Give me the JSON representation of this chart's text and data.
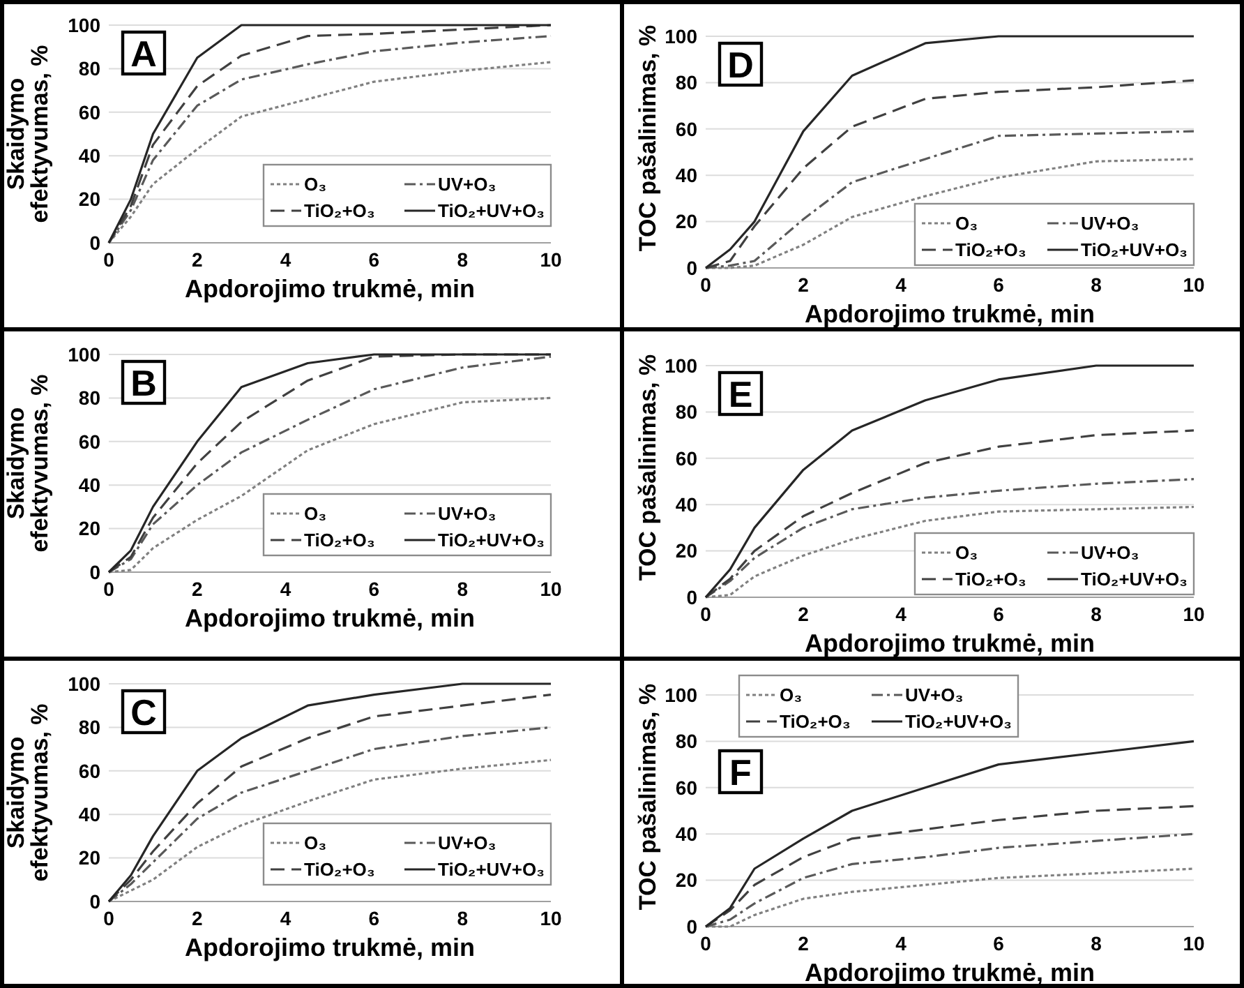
{
  "chart_data": [
    {
      "type": "line",
      "title": "A",
      "xlabel": "Apdorojimo trukmė, min",
      "ylabel": "Skaidymo efektyvumas, %",
      "x": [
        0,
        0.5,
        1,
        2,
        3,
        4.5,
        6,
        8,
        10
      ],
      "xlim": [
        0,
        10
      ],
      "xticks": [
        0,
        2,
        4,
        6,
        8,
        10
      ],
      "ylim": [
        0,
        100
      ],
      "yticks": [
        0,
        20,
        40,
        60,
        80,
        100
      ],
      "grid": "y",
      "legend": "bottom right",
      "series": [
        {
          "name": "O₃",
          "color": "#808080",
          "line_style": "dotted",
          "values": [
            0,
            12,
            27,
            43,
            58,
            66,
            74,
            79,
            83
          ]
        },
        {
          "name": "UV+O₃",
          "color": "#595959",
          "line_style": "dashdot",
          "values": [
            0,
            15,
            38,
            63,
            75,
            82,
            88,
            92,
            95
          ]
        },
        {
          "name": "TiO₂+O₃",
          "color": "#404040",
          "line_style": "dashed",
          "values": [
            0,
            17,
            45,
            72,
            86,
            95,
            96,
            98,
            100
          ]
        },
        {
          "name": "TiO₂+UV+O₃",
          "color": "#262626",
          "line_style": "solid",
          "values": [
            0,
            20,
            50,
            85,
            100,
            100,
            100,
            100,
            100
          ]
        }
      ]
    },
    {
      "type": "line",
      "title": "D",
      "xlabel": "Apdorojimo trukmė, min",
      "ylabel": "TOC pašalinimas, %",
      "x": [
        0,
        0.5,
        1,
        2,
        3,
        4.5,
        6,
        8,
        10
      ],
      "xlim": [
        0,
        10
      ],
      "xticks": [
        0,
        2,
        4,
        6,
        8,
        10
      ],
      "ylim": [
        0,
        100
      ],
      "yticks": [
        0,
        20,
        40,
        60,
        80,
        100
      ],
      "grid": "y",
      "legend": "bottom right",
      "series": [
        {
          "name": "O₃",
          "color": "#808080",
          "line_style": "dotted",
          "values": [
            0,
            0,
            1,
            10,
            22,
            31,
            39,
            46,
            47
          ]
        },
        {
          "name": "UV+O₃",
          "color": "#595959",
          "line_style": "dashdot",
          "values": [
            0,
            1,
            3,
            21,
            37,
            47,
            57,
            58,
            59
          ]
        },
        {
          "name": "TiO₂+O₃",
          "color": "#404040",
          "line_style": "dashed",
          "values": [
            0,
            3,
            18,
            43,
            61,
            73,
            76,
            78,
            81
          ]
        },
        {
          "name": "TiO₂+UV+O₃",
          "color": "#262626",
          "line_style": "solid",
          "values": [
            0,
            8,
            20,
            59,
            83,
            97,
            100,
            100,
            100
          ]
        }
      ]
    },
    {
      "type": "line",
      "title": "B",
      "xlabel": "Apdorojimo trukmė, min",
      "ylabel": "Skaidymo efektyvumas, %",
      "x": [
        0,
        0.5,
        1,
        2,
        3,
        4.5,
        6,
        8,
        10
      ],
      "xlim": [
        0,
        10
      ],
      "xticks": [
        0,
        2,
        4,
        6,
        8,
        10
      ],
      "ylim": [
        0,
        100
      ],
      "yticks": [
        0,
        20,
        40,
        60,
        80,
        100
      ],
      "grid": "y",
      "legend": "bottom right",
      "series": [
        {
          "name": "O₃",
          "color": "#808080",
          "line_style": "dotted",
          "values": [
            0,
            1,
            11,
            24,
            35,
            56,
            68,
            78,
            80
          ]
        },
        {
          "name": "UV+O₃",
          "color": "#595959",
          "line_style": "dashdot",
          "values": [
            0,
            6,
            22,
            40,
            55,
            70,
            84,
            94,
            99
          ]
        },
        {
          "name": "TiO₂+O₃",
          "color": "#404040",
          "line_style": "dashed",
          "values": [
            0,
            7,
            25,
            50,
            69,
            88,
            99,
            100,
            100
          ]
        },
        {
          "name": "TiO₂+UV+O₃",
          "color": "#262626",
          "line_style": "solid",
          "values": [
            0,
            10,
            30,
            60,
            85,
            96,
            100,
            100,
            100
          ]
        }
      ]
    },
    {
      "type": "line",
      "title": "E",
      "xlabel": "Apdorojimo trukmė, min",
      "ylabel": "TOC pašalinimas, %",
      "x": [
        0,
        0.5,
        1,
        2,
        3,
        4.5,
        6,
        8,
        10
      ],
      "xlim": [
        0,
        10
      ],
      "xticks": [
        0,
        2,
        4,
        6,
        8,
        10
      ],
      "ylim": [
        0,
        100
      ],
      "yticks": [
        0,
        20,
        40,
        60,
        80,
        100
      ],
      "grid": "y",
      "legend": "bottom right",
      "series": [
        {
          "name": "O₃",
          "color": "#808080",
          "line_style": "dotted",
          "values": [
            0,
            1,
            9,
            18,
            25,
            33,
            37,
            38,
            39
          ]
        },
        {
          "name": "UV+O₃",
          "color": "#595959",
          "line_style": "dashdot",
          "values": [
            0,
            7,
            17,
            30,
            38,
            43,
            46,
            49,
            51
          ]
        },
        {
          "name": "TiO₂+O₃",
          "color": "#404040",
          "line_style": "dashed",
          "values": [
            0,
            8,
            20,
            35,
            45,
            58,
            65,
            70,
            72
          ]
        },
        {
          "name": "TiO₂+UV+O₃",
          "color": "#262626",
          "line_style": "solid",
          "values": [
            0,
            12,
            30,
            55,
            72,
            85,
            94,
            100,
            100
          ]
        }
      ]
    },
    {
      "type": "line",
      "title": "C",
      "xlabel": "Apdorojimo trukmė, min",
      "ylabel": "Skaidymo efektyvumas, %",
      "x": [
        0,
        0.5,
        1,
        2,
        3,
        4.5,
        6,
        8,
        10
      ],
      "xlim": [
        0,
        10
      ],
      "xticks": [
        0,
        2,
        4,
        6,
        8,
        10
      ],
      "ylim": [
        0,
        100
      ],
      "yticks": [
        0,
        20,
        40,
        60,
        80,
        100
      ],
      "grid": "y",
      "legend": "bottom right",
      "series": [
        {
          "name": "O₃",
          "color": "#808080",
          "line_style": "dotted",
          "values": [
            0,
            5,
            10,
            25,
            35,
            46,
            56,
            61,
            65
          ]
        },
        {
          "name": "UV+O₃",
          "color": "#595959",
          "line_style": "dashdot",
          "values": [
            0,
            8,
            18,
            38,
            50,
            60,
            70,
            76,
            80
          ]
        },
        {
          "name": "TiO₂+O₃",
          "color": "#404040",
          "line_style": "dashed",
          "values": [
            0,
            10,
            23,
            45,
            62,
            75,
            85,
            90,
            95
          ]
        },
        {
          "name": "TiO₂+UV+O₃",
          "color": "#262626",
          "line_style": "solid",
          "values": [
            0,
            12,
            30,
            60,
            75,
            90,
            95,
            100,
            100
          ]
        }
      ]
    },
    {
      "type": "line",
      "title": "F",
      "xlabel": "Apdorojimo trukmė, min",
      "ylabel": "TOC pašalinimas, %",
      "x": [
        0,
        0.5,
        1,
        2,
        3,
        4.5,
        6,
        8,
        10
      ],
      "xlim": [
        0,
        10
      ],
      "xticks": [
        0,
        2,
        4,
        6,
        8,
        10
      ],
      "ylim": [
        0,
        100
      ],
      "yticks": [
        0,
        20,
        40,
        60,
        80,
        100
      ],
      "grid": "y",
      "legend": "top left",
      "series": [
        {
          "name": "O₃",
          "color": "#808080",
          "line_style": "dotted",
          "values": [
            0,
            0,
            5,
            12,
            15,
            18,
            21,
            23,
            25
          ]
        },
        {
          "name": "UV+O₃",
          "color": "#595959",
          "line_style": "dashdot",
          "values": [
            0,
            3,
            10,
            21,
            27,
            30,
            34,
            37,
            40
          ]
        },
        {
          "name": "TiO₂+O₃",
          "color": "#404040",
          "line_style": "dashed",
          "values": [
            0,
            7,
            18,
            30,
            38,
            42,
            46,
            50,
            52
          ]
        },
        {
          "name": "TiO₂+UV+O₃",
          "color": "#262626",
          "line_style": "solid",
          "values": [
            0,
            8,
            25,
            38,
            50,
            60,
            70,
            75,
            80
          ]
        }
      ]
    }
  ]
}
